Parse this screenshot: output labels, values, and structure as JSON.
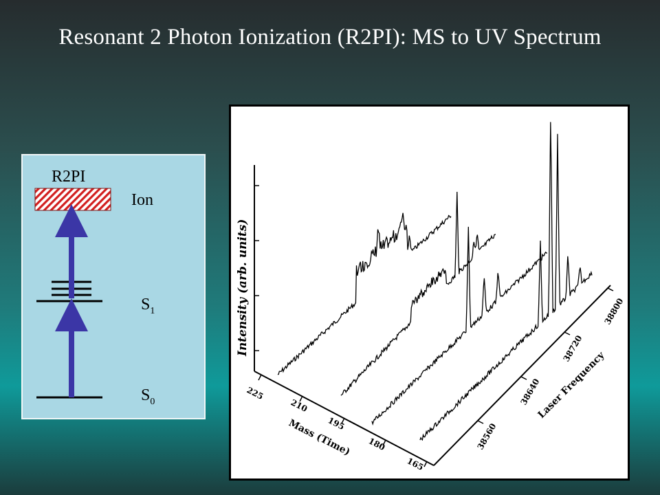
{
  "title": "Resonant 2 Photon Ionization (R2PI): MS to UV Spectrum",
  "energy_diagram": {
    "technique_label": "R2PI",
    "ion_label": "Ion",
    "s1_label": "S",
    "s1_subscript": "1",
    "s0_label": "S",
    "s0_subscript": "0",
    "colors": {
      "arrow": "#3b36a6",
      "ion_hatch": "#d21f1f",
      "panel": "#a9d7e4"
    }
  },
  "chart_data": {
    "type": "line",
    "style": "3d-waterfall",
    "zlabel": "Intensity (arb. units)",
    "xlabel": "Mass (Time)",
    "ylabel": "Laser Frequency",
    "mass_ticks": [
      "225",
      "210",
      "195",
      "180",
      "165"
    ],
    "frequency_ticks": [
      "38560",
      "38640",
      "38720",
      "38800"
    ],
    "series_count": 4,
    "colors": {
      "trace": "#000000"
    }
  }
}
